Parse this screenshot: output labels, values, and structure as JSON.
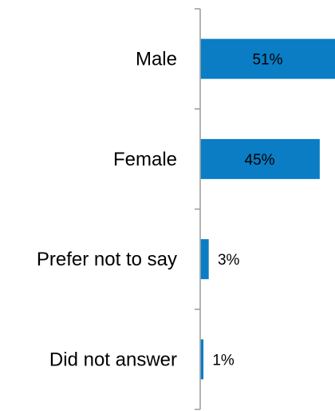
{
  "chart_data": {
    "type": "bar",
    "orientation": "horizontal",
    "categories": [
      "Male",
      "Female",
      "Prefer not to say",
      "Did not answer"
    ],
    "values": [
      51,
      45,
      3,
      1
    ],
    "value_labels": [
      "51%",
      "45%",
      "3%",
      "1%"
    ],
    "unit": "%",
    "xlim": [
      0,
      51
    ],
    "grid": false,
    "legend": "none",
    "title": "",
    "xlabel": "",
    "ylabel": "",
    "colors": {
      "bar": "#0A7DC5",
      "axis": "#9A9A9A",
      "label_inside": "#000000",
      "label_outside": "#000000"
    }
  }
}
